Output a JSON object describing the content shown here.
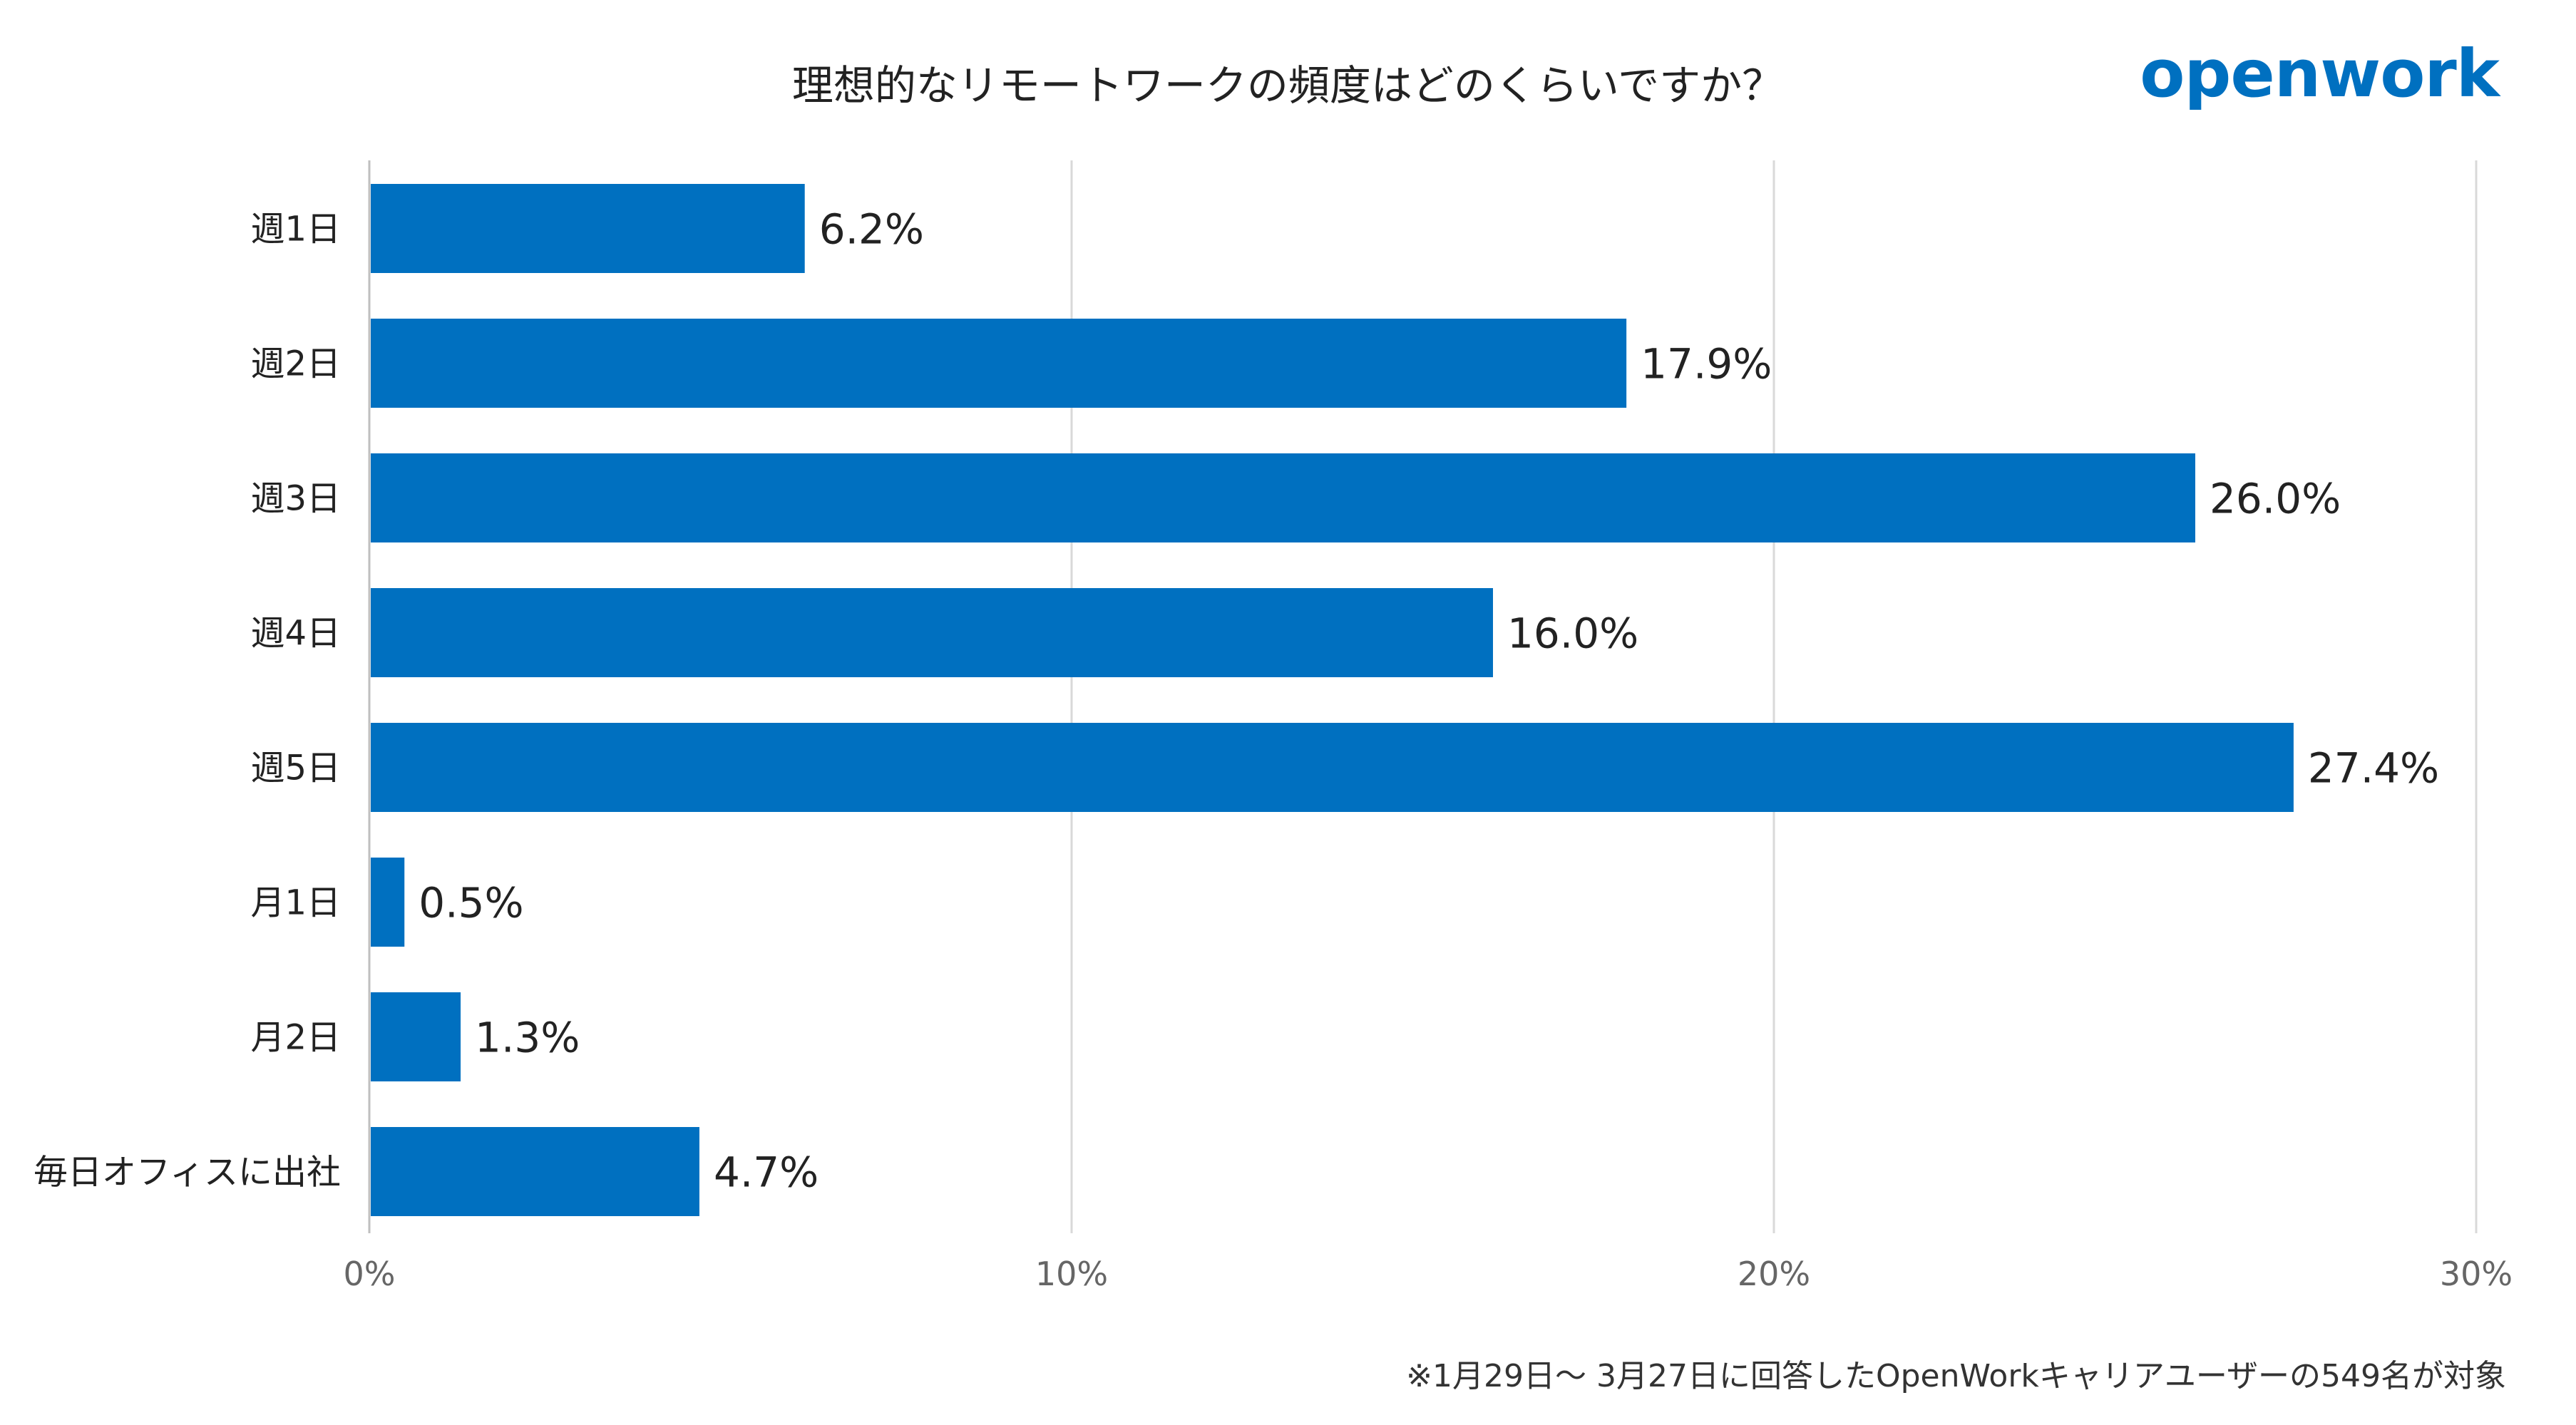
{
  "title": "理想的なリモートワークの頻度はどのくらいですか？",
  "logo": {
    "text": "openwork",
    "color": "#0070C0"
  },
  "footnote": "※1月29日〜 3月27日に回答したOpenWorkキャリアユーザーの549名が対象",
  "colors": {
    "bar": "#0070C0",
    "grid": "#d9d9d9"
  },
  "chart_data": {
    "type": "bar",
    "orientation": "horizontal",
    "categories": [
      "週1日",
      "週2日",
      "週3日",
      "週4日",
      "週5日",
      "月1日",
      "月2日",
      "毎日オフィスに出社"
    ],
    "values": [
      6.2,
      17.9,
      26.0,
      16.0,
      27.4,
      0.5,
      1.3,
      4.7
    ],
    "value_labels": [
      "6.2%",
      "17.9%",
      "26.0%",
      "16.0%",
      "27.4%",
      "0.5%",
      "1.3%",
      "4.7%"
    ],
    "xlim": [
      0,
      30
    ],
    "xticks": [
      0,
      10,
      20,
      30
    ],
    "xtick_labels": [
      "0%",
      "10%",
      "20%",
      "30%"
    ],
    "grid": true,
    "legend": "none"
  }
}
